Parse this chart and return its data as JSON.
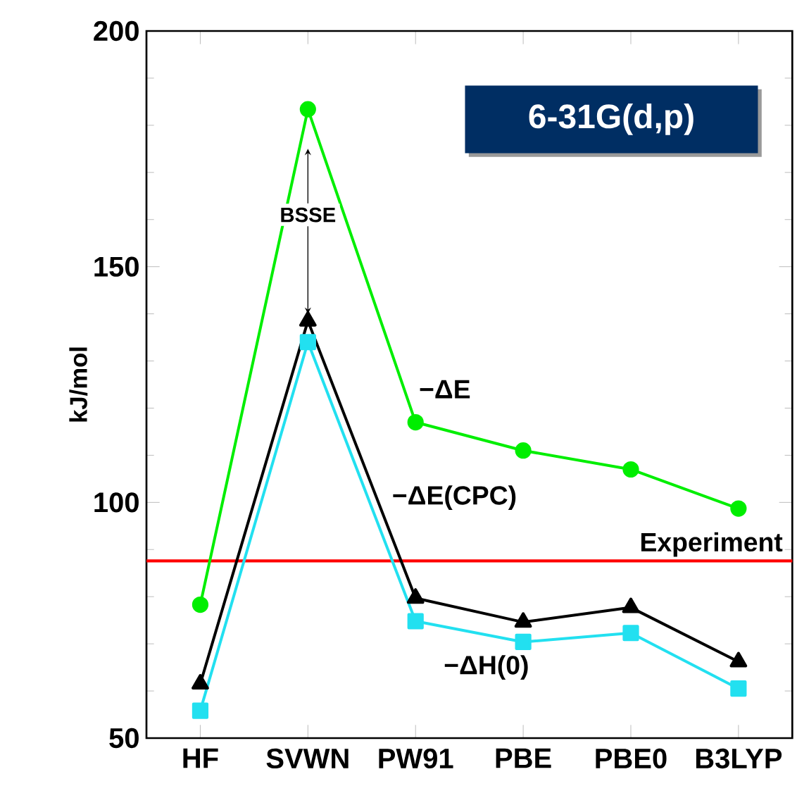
{
  "chart_data": {
    "type": "line",
    "title": "6-31G(d,p)",
    "ylabel": "kJ/mol",
    "categories": [
      "HF",
      "SVWN",
      "PW91",
      "PBE",
      "PBE0",
      "B3LYP"
    ],
    "series": [
      {
        "name": "−ΔE",
        "color": "#00ee00",
        "marker": "circle",
        "values": [
          78.3,
          183.4,
          117,
          111,
          107,
          98.7
        ]
      },
      {
        "name": "−ΔE(CPC)",
        "color": "#000000",
        "marker": "triangle",
        "values": [
          61.5,
          138.5,
          79.7,
          74.6,
          77.7,
          66.2
        ]
      },
      {
        "name": "−ΔH(0)",
        "color": "#22e0f0",
        "marker": "square",
        "values": [
          55.8,
          134,
          74.8,
          70.4,
          72.3,
          60.5
        ]
      }
    ],
    "ylim": [
      50,
      200
    ],
    "yticks": [
      50,
      100,
      150,
      200
    ],
    "ref_lines": [
      {
        "axis": "y",
        "value": 87.6,
        "label": "Experiment",
        "color": "#ff0000"
      }
    ],
    "annotations": [
      {
        "text": "BSSE",
        "x": "SVWN",
        "y": 138.5
      }
    ],
    "grid": false,
    "line_style": "solid"
  }
}
